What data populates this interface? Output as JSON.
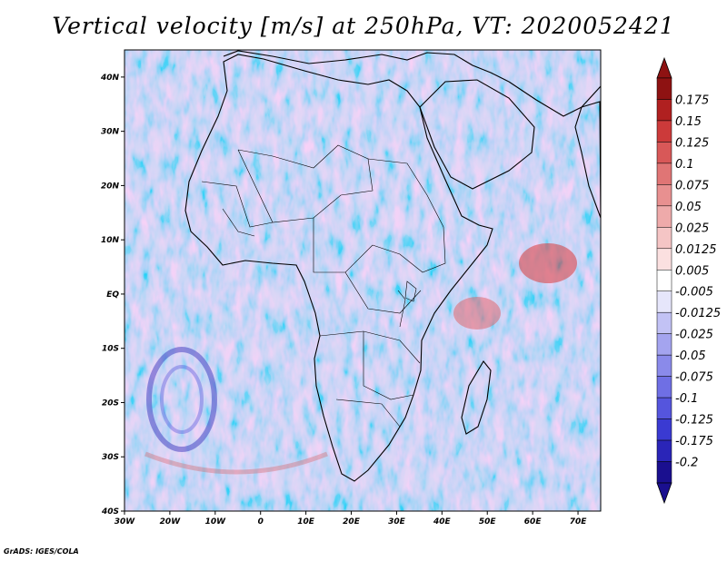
{
  "title": "Vertical velocity [m/s] at 250hPa, VT: 2020052421",
  "footer": "GrADS: IGES/COLA",
  "map": {
    "lon_range": [
      -30,
      75
    ],
    "lat_range": [
      -40,
      45
    ],
    "lat_ticks": [
      {
        "value": 40,
        "label": "40N"
      },
      {
        "value": 30,
        "label": "30N"
      },
      {
        "value": 20,
        "label": "20N"
      },
      {
        "value": 10,
        "label": "10N"
      },
      {
        "value": 0,
        "label": "EQ"
      },
      {
        "value": -10,
        "label": "10S"
      },
      {
        "value": -20,
        "label": "20S"
      },
      {
        "value": -30,
        "label": "30S"
      },
      {
        "value": -40,
        "label": "40S"
      }
    ],
    "lon_ticks": [
      {
        "value": -30,
        "label": "30W"
      },
      {
        "value": -20,
        "label": "20W"
      },
      {
        "value": -10,
        "label": "10W"
      },
      {
        "value": 0,
        "label": "0"
      },
      {
        "value": 10,
        "label": "10E"
      },
      {
        "value": 20,
        "label": "20E"
      },
      {
        "value": 30,
        "label": "30E"
      },
      {
        "value": 40,
        "label": "40E"
      },
      {
        "value": 50,
        "label": "50E"
      },
      {
        "value": 60,
        "label": "60E"
      },
      {
        "value": 70,
        "label": "70E"
      }
    ]
  },
  "colorbar": {
    "colors": [
      "#1a0f8f",
      "#2a25b8",
      "#3a3ad2",
      "#5555dd",
      "#6f6fe4",
      "#8a8aea",
      "#a4a4ef",
      "#c2c2f5",
      "#e6e6fb",
      "#ffffff",
      "#fbe0e0",
      "#f5c5c5",
      "#eeaaaa",
      "#e89090",
      "#e07575",
      "#d85858",
      "#cc3a3a",
      "#b02020",
      "#8e1212"
    ],
    "labels": [
      "-0.2",
      "-0.175",
      "-0.125",
      "-0.1",
      "-0.075",
      "-0.05",
      "-0.025",
      "-0.0125",
      "-0.005",
      "0.005",
      "0.0125",
      "0.025",
      "0.05",
      "0.075",
      "0.1",
      "0.125",
      "0.15",
      "0.175"
    ]
  }
}
